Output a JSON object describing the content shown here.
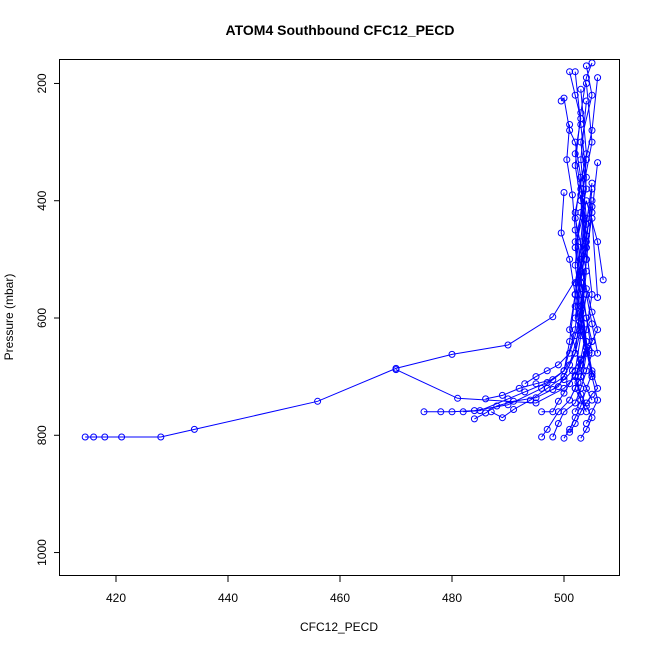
{
  "chart_data": {
    "type": "line",
    "title": "ATOM4 Southbound CFC12_PECD",
    "xlabel": "CFC12_PECD",
    "ylabel": "Pressure (mbar)",
    "xlim": [
      410,
      510
    ],
    "ylim": [
      1040,
      160
    ],
    "y_reversed": true,
    "xticks": [
      420,
      440,
      460,
      480,
      500
    ],
    "yticks": [
      200,
      400,
      600,
      800,
      1000
    ],
    "grid": false,
    "marker": "open-circle",
    "color": "#0000ff",
    "series": [
      {
        "x": [
          414.5,
          416,
          418,
          421,
          428,
          434,
          456,
          470,
          480,
          490,
          498,
          503,
          503.5,
          502,
          503,
          504,
          505
        ],
        "y": [
          803,
          803,
          803,
          803,
          803,
          790,
          742,
          686,
          662,
          646,
          598,
          520,
          430,
          340,
          250,
          190,
          165
        ]
      },
      {
        "x": [
          470,
          481,
          495,
          500,
          502,
          504,
          503,
          502,
          504,
          503,
          505,
          504
        ],
        "y": [
          688,
          737,
          745,
          720,
          700,
          650,
          560,
          470,
          380,
          300,
          220,
          170
        ]
      },
      {
        "x": [
          475,
          478,
          480,
          484,
          490,
          496,
          500,
          502,
          503,
          502,
          504,
          503
        ],
        "y": [
          760,
          760,
          760,
          758,
          748,
          720,
          690,
          620,
          520,
          420,
          320,
          210
        ]
      },
      {
        "x": [
          482,
          485,
          490,
          493,
          497,
          500,
          501,
          502,
          503,
          504,
          503,
          502
        ],
        "y": [
          760,
          758,
          738,
          726,
          710,
          690,
          640,
          560,
          470,
          360,
          270,
          180
        ]
      },
      {
        "x": [
          487,
          489,
          491,
          494,
          497,
          500,
          502,
          503,
          504,
          503,
          505,
          504
        ],
        "y": [
          760,
          770,
          756,
          740,
          720,
          700,
          660,
          580,
          500,
          400,
          300,
          200
        ]
      },
      {
        "x": [
          484,
          486,
          488,
          491,
          495,
          499,
          501,
          503,
          502,
          504,
          503,
          504
        ],
        "y": [
          772,
          762,
          750,
          742,
          736,
          717,
          680,
          610,
          540,
          430,
          330,
          230
        ]
      },
      {
        "x": [
          496,
          498,
          499,
          500,
          501,
          502,
          503,
          502,
          504,
          503,
          505,
          506
        ],
        "y": [
          760,
          760,
          742,
          728,
          712,
          690,
          630,
          560,
          460,
          370,
          280,
          190
        ]
      },
      {
        "x": [
          496,
          497,
          499,
          501,
          502,
          503,
          504,
          503,
          502,
          504,
          506,
          507
        ],
        "y": [
          803,
          790,
          760,
          740,
          720,
          700,
          640,
          560,
          480,
          400,
          470,
          535
        ]
      },
      {
        "x": [
          498,
          499,
          500,
          502,
          503,
          504,
          505,
          504,
          503,
          505,
          506
        ],
        "y": [
          803,
          780,
          760,
          745,
          720,
          690,
          660,
          600,
          530,
          430,
          565
        ]
      },
      {
        "x": [
          500,
          501,
          502,
          503,
          504,
          505,
          504,
          503,
          502,
          503,
          504
        ],
        "y": [
          805,
          790,
          770,
          750,
          720,
          695,
          650,
          580,
          510,
          420,
          330
        ]
      },
      {
        "x": [
          501,
          502,
          503,
          504,
          505,
          506,
          505,
          504,
          503,
          504,
          505
        ],
        "y": [
          795,
          780,
          760,
          745,
          730,
          720,
          690,
          640,
          580,
          500,
          410
        ]
      },
      {
        "x": [
          503,
          504,
          505,
          504,
          503,
          502,
          503,
          504,
          505,
          504,
          503
        ],
        "y": [
          805,
          790,
          770,
          750,
          730,
          700,
          670,
          620,
          560,
          480,
          390
        ]
      },
      {
        "x": [
          499.5,
          500,
          501,
          502,
          503,
          502,
          504,
          503,
          505
        ],
        "y": [
          230,
          225,
          280,
          300,
          360,
          430,
          520,
          610,
          700
        ]
      },
      {
        "x": [
          500,
          499.5,
          501,
          502,
          501,
          503,
          502,
          504
        ],
        "y": [
          386,
          455,
          500,
          560,
          620,
          680,
          720,
          760
        ]
      },
      {
        "x": [
          501,
          500.5,
          501.5,
          502,
          503,
          502,
          504,
          503,
          505
        ],
        "y": [
          270,
          330,
          390,
          450,
          540,
          600,
          650,
          700,
          740
        ]
      },
      {
        "x": [
          504,
          505,
          506,
          505,
          504,
          503,
          504,
          505,
          506
        ],
        "y": [
          780,
          760,
          740,
          700,
          650,
          600,
          500,
          420,
          335
        ]
      },
      {
        "x": [
          502,
          503,
          502.5,
          503.5,
          504,
          503,
          502,
          503,
          504,
          505
        ],
        "y": [
          760,
          740,
          710,
          690,
          660,
          620,
          580,
          520,
          460,
          400
        ]
      },
      {
        "x": [
          493,
          495,
          497,
          499,
          501,
          502,
          503,
          502,
          504
        ],
        "y": [
          712,
          700,
          690,
          680,
          660,
          630,
          590,
          540,
          480
        ]
      },
      {
        "x": [
          486,
          489,
          492,
          495,
          498,
          500,
          502,
          503,
          504
        ],
        "y": [
          738,
          732,
          720,
          712,
          705,
          690,
          660,
          620,
          560
        ]
      },
      {
        "x": [
          498,
          500,
          501.5,
          503,
          504.5,
          505,
          504,
          503,
          504,
          505
        ],
        "y": [
          722,
          705,
          690,
          672,
          655,
          640,
          600,
          540,
          470,
          380
        ]
      },
      {
        "x": [
          502,
          503,
          504,
          505,
          506,
          505,
          504,
          503,
          504,
          505
        ],
        "y": [
          698,
          680,
          660,
          640,
          620,
          590,
          550,
          500,
          440,
          370
        ]
      },
      {
        "x": [
          501,
          502,
          503,
          502,
          503,
          504,
          503,
          504,
          505,
          506
        ],
        "y": [
          180,
          220,
          260,
          320,
          380,
          440,
          500,
          560,
          610,
          660
        ]
      }
    ]
  }
}
